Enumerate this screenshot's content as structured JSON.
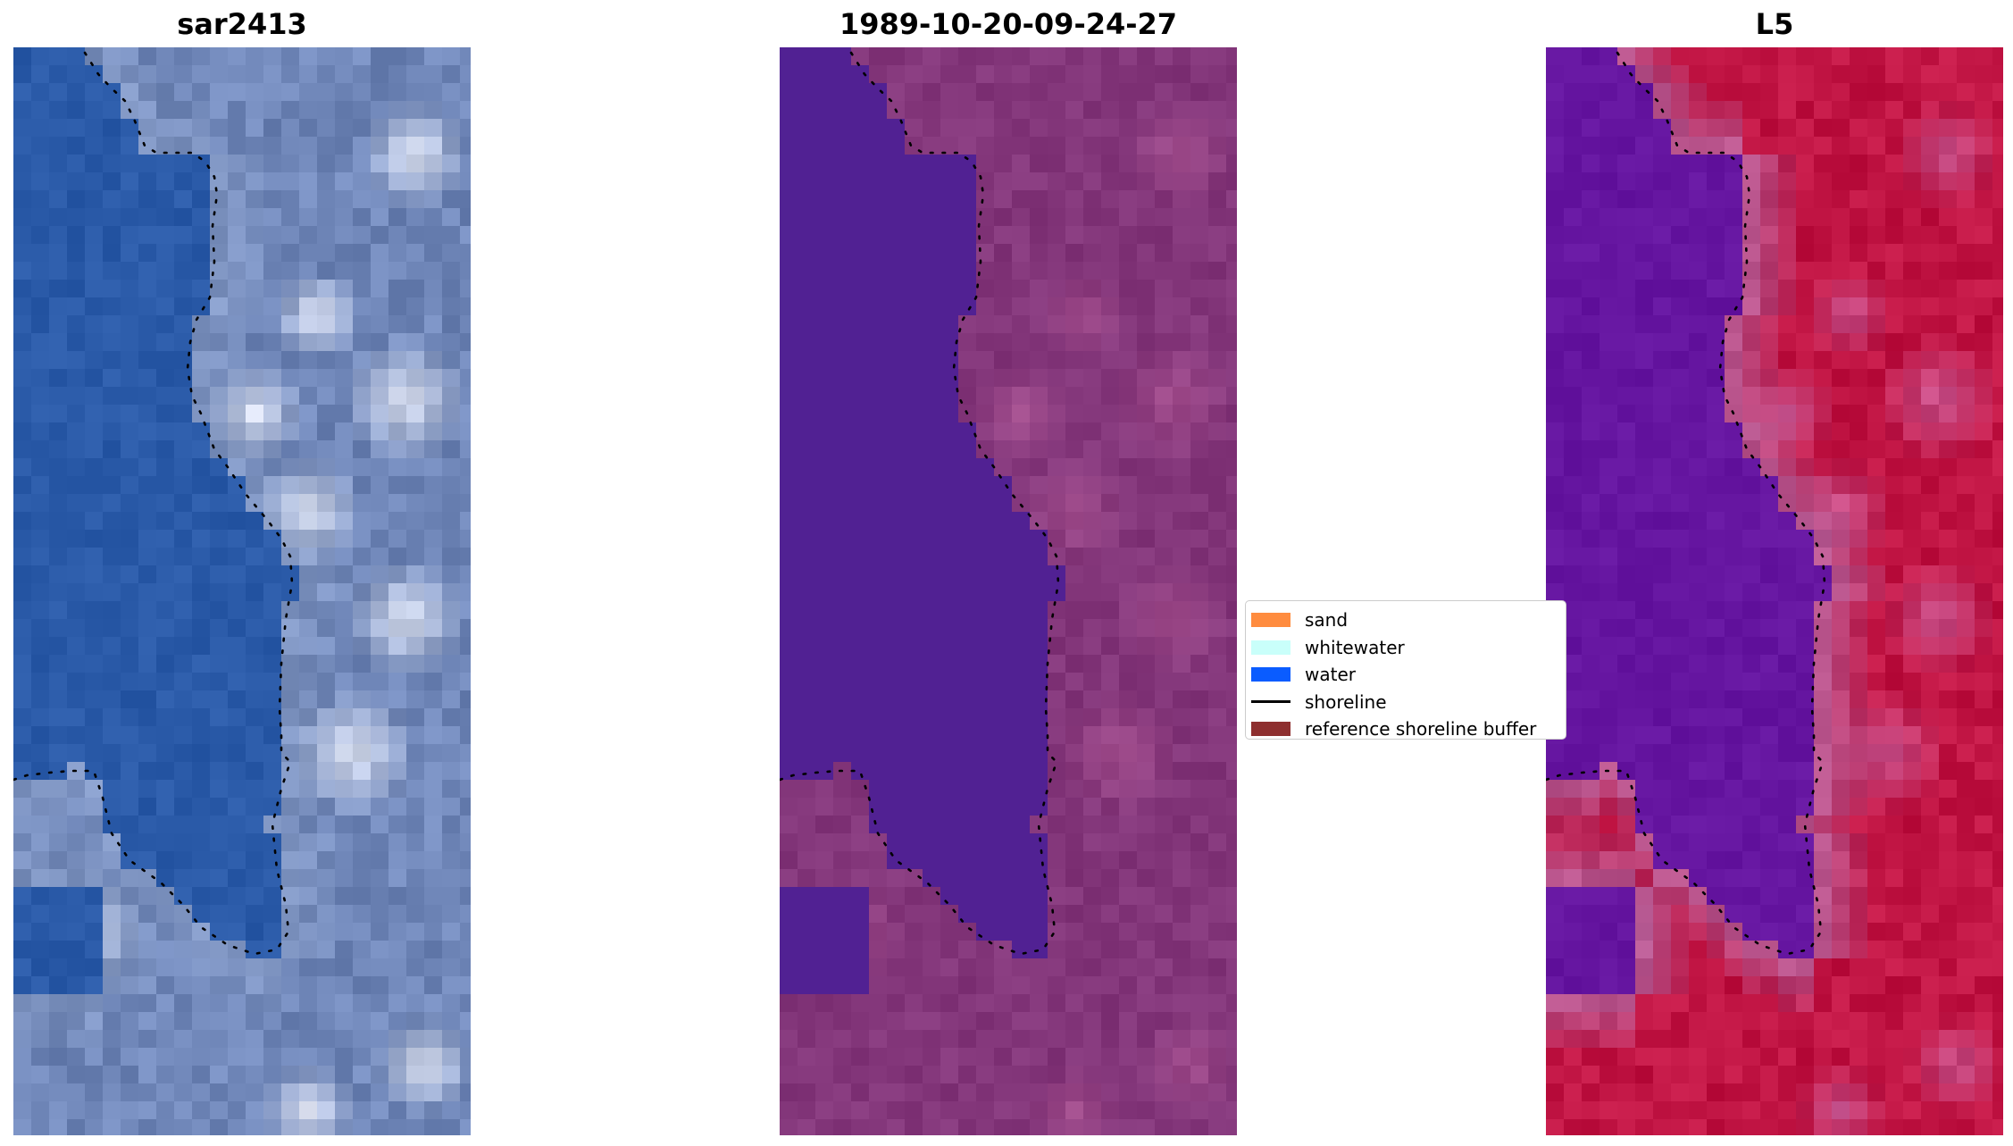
{
  "panels": [
    {
      "title": "sar2413"
    },
    {
      "title": "1989-10-20-09-24-27"
    },
    {
      "title": "L5"
    }
  ],
  "legend": {
    "items": [
      {
        "label": "sand",
        "color": "#ff8c3f",
        "kind": "patch"
      },
      {
        "label": "whitewater",
        "color": "#c9fffa",
        "kind": "patch"
      },
      {
        "label": "water",
        "color": "#0a5cff",
        "kind": "patch"
      },
      {
        "label": "shoreline",
        "color": "#000000",
        "kind": "line"
      },
      {
        "label": "reference shoreline buffer",
        "color": "#8e2f2f",
        "kind": "patch"
      }
    ]
  },
  "colors": {
    "rgb_water": "#2a5aa8",
    "rgb_land": "#6f86b8",
    "class_water": "#512193",
    "class_land": "#83367a",
    "mndwi_water": "#6515a0",
    "mndwi_land": "#c01443",
    "shoreline": "#000000"
  }
}
